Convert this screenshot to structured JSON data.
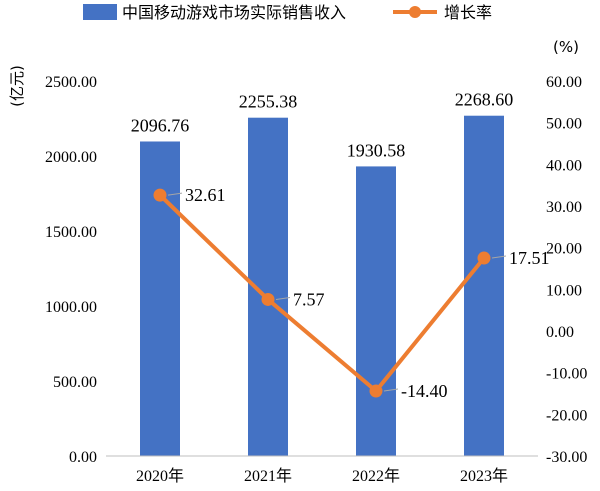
{
  "chart_data": {
    "type": "bar",
    "categories": [
      "2020年",
      "2021年",
      "2022年",
      "2023年"
    ],
    "series": [
      {
        "name": "中国移动游戏市场实际销售收入",
        "type": "bar",
        "axis": "left",
        "color": "#4472C4",
        "values": [
          2096.76,
          2255.38,
          1930.58,
          2268.6
        ],
        "labels": [
          "2096.76",
          "2255.38",
          "1930.58",
          "2268.60"
        ]
      },
      {
        "name": "增长率",
        "type": "line",
        "axis": "right",
        "color": "#ED7D31",
        "values": [
          32.61,
          7.57,
          -14.4,
          17.51
        ],
        "labels": [
          "32.61",
          "7.57",
          "-14.40",
          "17.51"
        ]
      }
    ],
    "y_left": {
      "label": "(亿元)",
      "min": 0,
      "max": 2500,
      "ticks": [
        "0.00",
        "500.00",
        "1000.00",
        "1500.00",
        "2000.00",
        "2500.00"
      ]
    },
    "y_right": {
      "label": "(%)",
      "min": -30,
      "max": 60,
      "ticks": [
        "-30.00",
        "-20.00",
        "-10.00",
        "0.00",
        "10.00",
        "20.00",
        "30.00",
        "40.00",
        "50.00",
        "60.00"
      ]
    },
    "legend_position": "top",
    "grid": false
  }
}
